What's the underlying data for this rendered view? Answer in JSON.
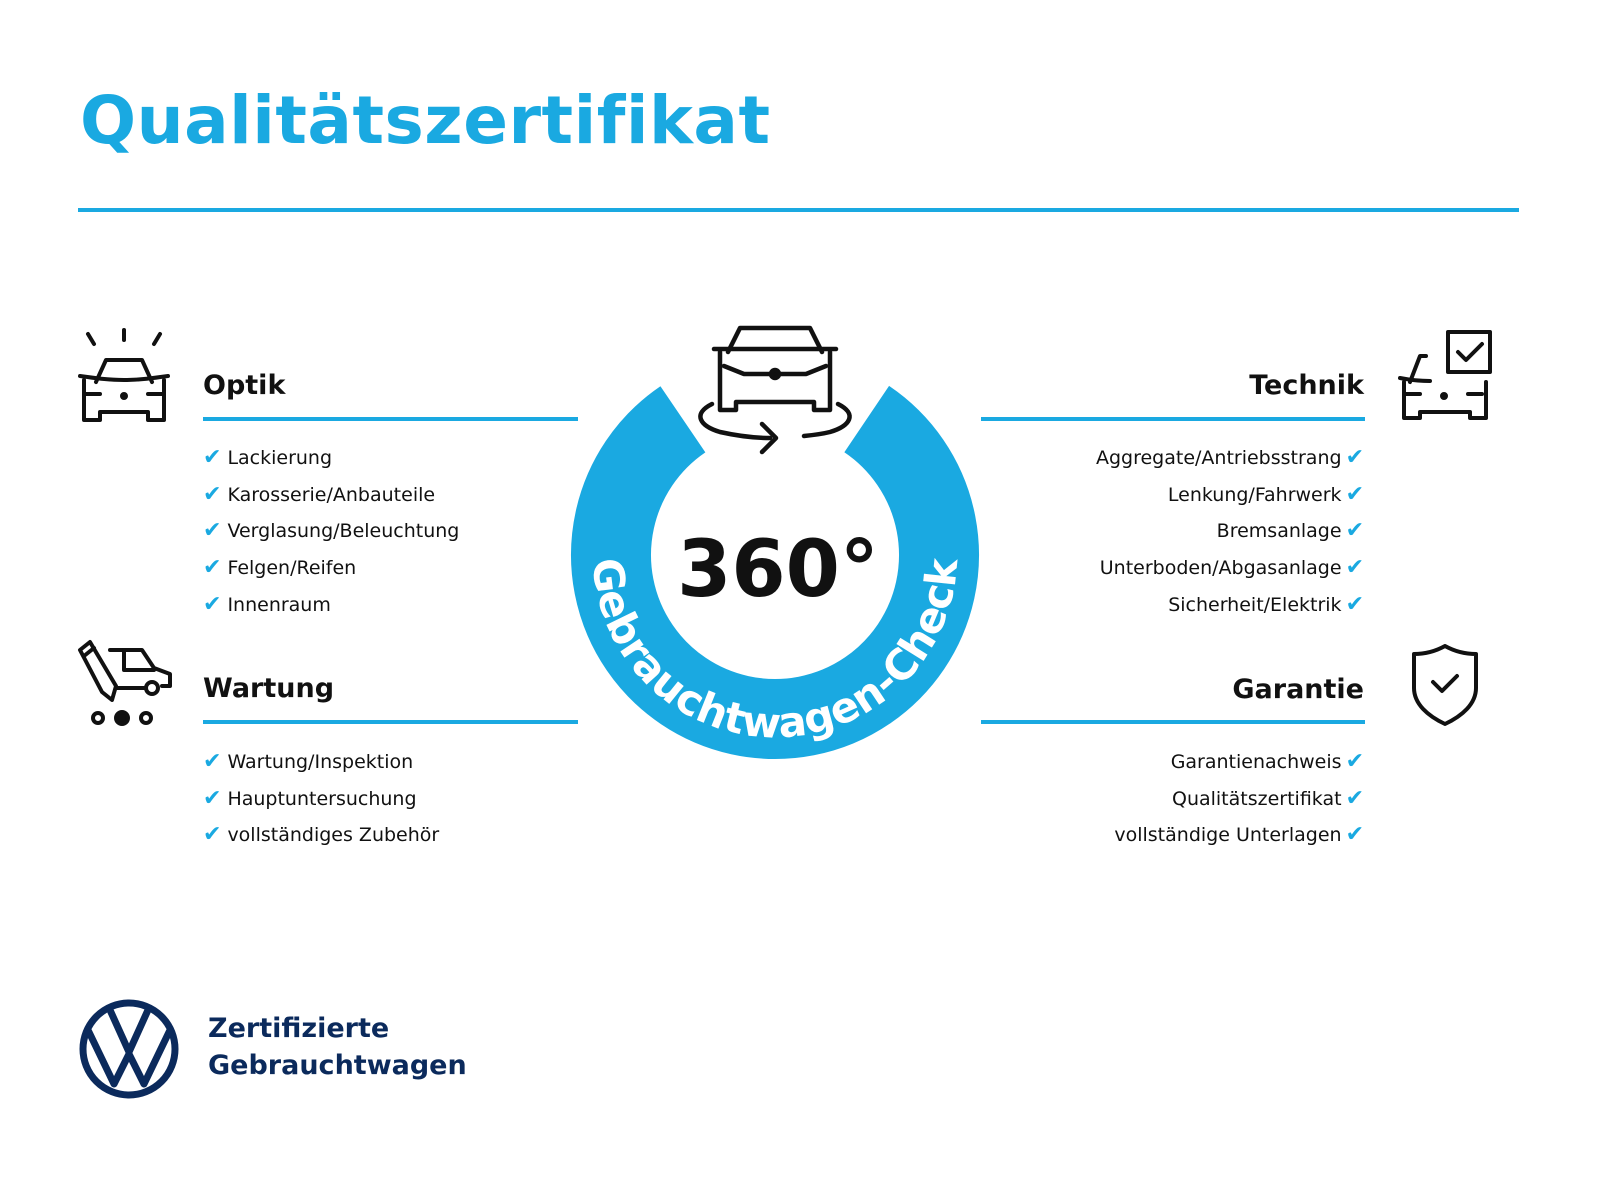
{
  "title": "Qualitätszertifikat",
  "colors": {
    "accent": "#1aa9e1",
    "brand": "#0b2a5c",
    "text": "#111111"
  },
  "center": {
    "big": "360°",
    "ring_text": "Gebrauchtwagen-Check",
    "icon": "car-rotate-icon"
  },
  "sections": {
    "optik": {
      "heading": "Optik",
      "icon": "car-lights-icon",
      "items": [
        "Lackierung",
        "Karosserie/Anbauteile",
        "Verglasung/Beleuchtung",
        "Felgen/Reifen",
        "Innenraum"
      ]
    },
    "wartung": {
      "heading": "Wartung",
      "icon": "van-pencil-icon",
      "items": [
        "Wartung/Inspektion",
        "Hauptuntersuchung",
        "vollständiges Zubehör"
      ]
    },
    "technik": {
      "heading": "Technik",
      "icon": "car-checkbox-icon",
      "items": [
        "Aggregate/Antriebsstrang",
        "Lenkung/Fahrwerk",
        "Bremsanlage",
        "Unterboden/Abgasanlage",
        "Sicherheit/Elektrik"
      ]
    },
    "garantie": {
      "heading": "Garantie",
      "icon": "shield-check-icon",
      "items": [
        "Garantienachweis",
        "Qualitätszertifikat",
        "vollständige Unterlagen"
      ]
    }
  },
  "check_glyph": "✔",
  "footer": {
    "line1": "Zertifizierte",
    "line2": "Gebrauchtwagen",
    "logo": "VW"
  }
}
